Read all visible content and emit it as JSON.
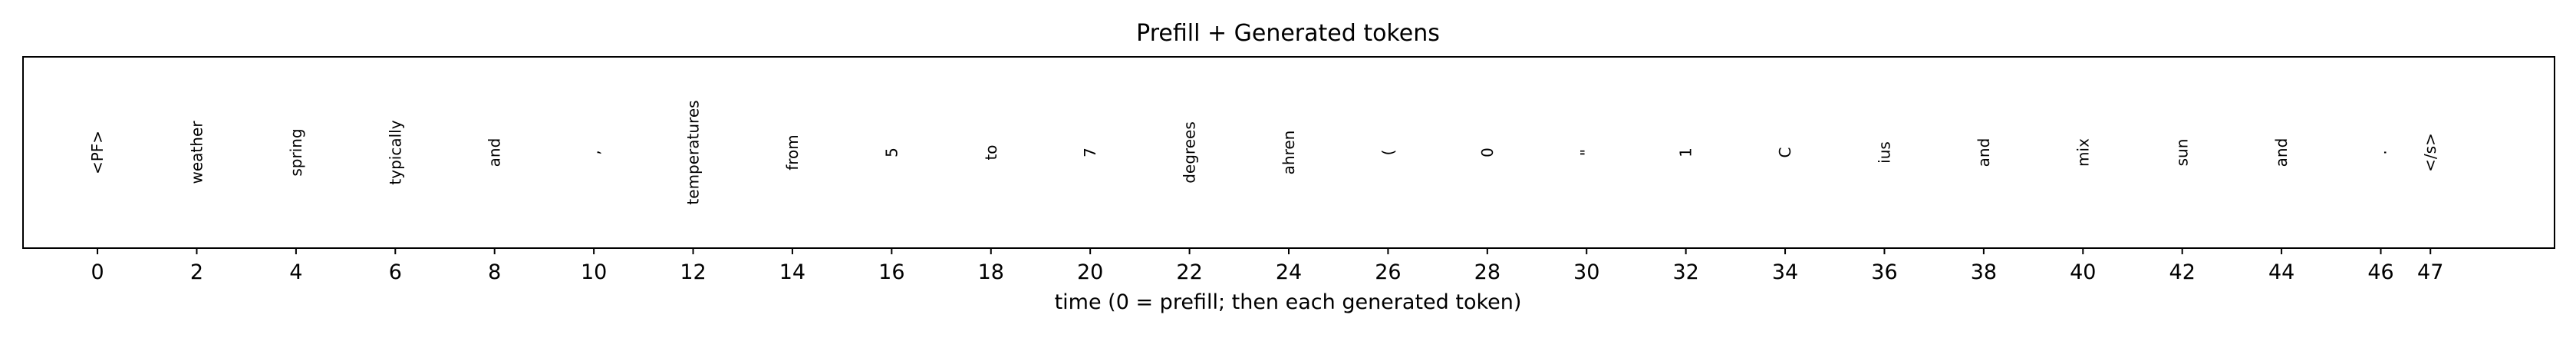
{
  "chart_data": {
    "type": "table",
    "title": "Prefill + Generated tokens",
    "xlabel": "time (0 = prefill; then each generated token)",
    "ylabel": "",
    "xlim": [
      -1.5,
      49.5
    ],
    "xticks": [
      0,
      2,
      4,
      6,
      8,
      10,
      12,
      14,
      16,
      18,
      20,
      22,
      24,
      26,
      28,
      30,
      32,
      34,
      36,
      38,
      40,
      42,
      44,
      46,
      47
    ],
    "grid": false,
    "tokens": [
      {
        "x": 0,
        "text": "<PF>"
      },
      {
        "x": 2,
        "text": "weather"
      },
      {
        "x": 4,
        "text": "spring"
      },
      {
        "x": 6,
        "text": "typically"
      },
      {
        "x": 8,
        "text": "and"
      },
      {
        "x": 10,
        "text": ","
      },
      {
        "x": 12,
        "text": "temperatures"
      },
      {
        "x": 14,
        "text": "from"
      },
      {
        "x": 16,
        "text": "5"
      },
      {
        "x": 18,
        "text": "to"
      },
      {
        "x": 20,
        "text": "7"
      },
      {
        "x": 22,
        "text": "degrees"
      },
      {
        "x": 24,
        "text": "ahren"
      },
      {
        "x": 26,
        "text": "("
      },
      {
        "x": 28,
        "text": "0"
      },
      {
        "x": 30,
        "text": "\""
      },
      {
        "x": 32,
        "text": "1"
      },
      {
        "x": 34,
        "text": "C"
      },
      {
        "x": 36,
        "text": "ius"
      },
      {
        "x": 38,
        "text": "and"
      },
      {
        "x": 40,
        "text": "mix"
      },
      {
        "x": 42,
        "text": "sun"
      },
      {
        "x": 44,
        "text": "and"
      },
      {
        "x": 46,
        "text": "."
      },
      {
        "x": 47,
        "text": "</s>"
      }
    ]
  }
}
